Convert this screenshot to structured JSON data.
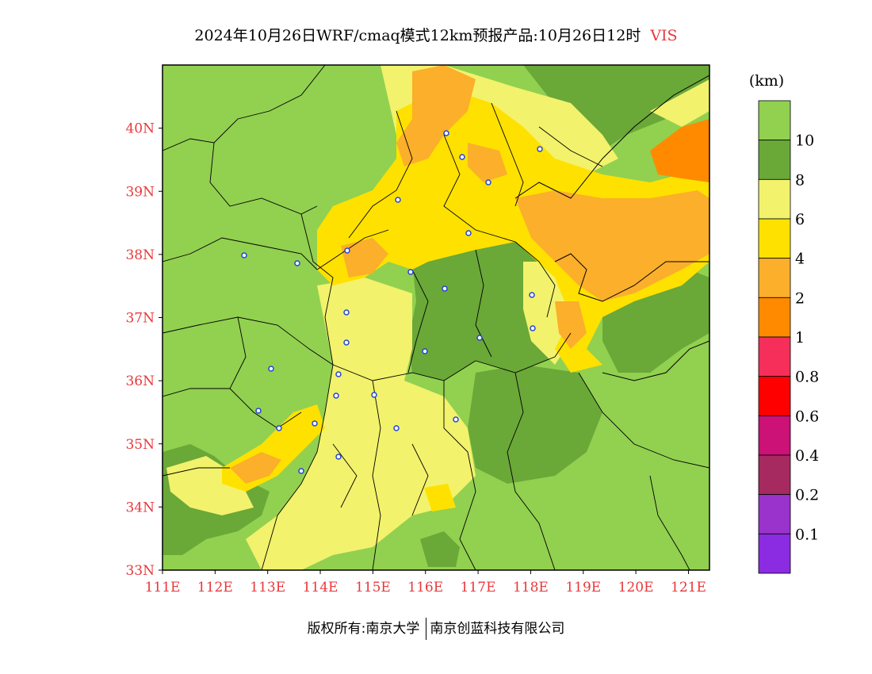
{
  "title": {
    "main": "2024年10月26日WRF/cmaq模式12km预报产品:10月26日12时",
    "variable": "VIS"
  },
  "map": {
    "lat_labels": [
      "40N",
      "39N",
      "38N",
      "37N",
      "36N",
      "35N",
      "34N",
      "33N"
    ],
    "lon_labels": [
      "111E",
      "112E",
      "113E",
      "114E",
      "115E",
      "116E",
      "117E",
      "118E",
      "119E",
      "120E",
      "121E"
    ],
    "lat_values": [
      40,
      39,
      38,
      37,
      36,
      35,
      34,
      33
    ],
    "lon_values": [
      111,
      112,
      113,
      114,
      115,
      116,
      117,
      118,
      119,
      120,
      121
    ],
    "extent": {
      "lon_min": 111,
      "lon_max": 121.4,
      "lat_min": 33,
      "lat_max": 41
    }
  },
  "colorbar": {
    "unit": "(km)",
    "colors": [
      "#92d050",
      "#6aa838",
      "#f2f26c",
      "#ffe100",
      "#fbaf2a",
      "#ff8a00",
      "#f52f5a",
      "#ff0000",
      "#cc1177",
      "#a62a5f",
      "#9933cc",
      "#8b2be2"
    ],
    "labels": [
      "10",
      "8",
      "6",
      "4",
      "2",
      "1",
      "0.8",
      "0.6",
      "0.4",
      "0.2",
      "0.1"
    ]
  },
  "footer": {
    "copyright": "版权所有:南京大学",
    "company": "南京创蓝科技有限公司"
  }
}
